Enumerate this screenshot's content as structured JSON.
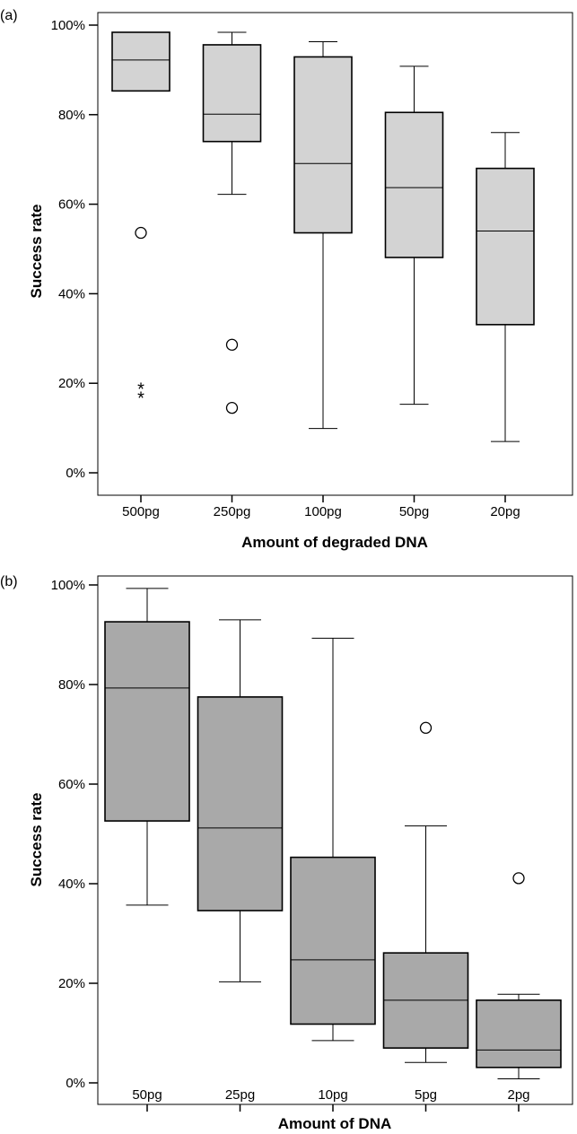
{
  "chart_data": [
    {
      "panel_label": "(a)",
      "type": "box",
      "xlabel": "Amount of degraded DNA",
      "ylabel": "Success rate",
      "ylim": [
        0,
        100
      ],
      "yticks": [
        "0%",
        "20%",
        "40%",
        "60%",
        "80%",
        "100%"
      ],
      "ytick_values": [
        0,
        20,
        40,
        60,
        80,
        100
      ],
      "box_fill": "#d3d3d3",
      "categories": [
        "500pg",
        "250pg",
        "100pg",
        "50pg",
        "20pg"
      ],
      "boxes": [
        {
          "category": "500pg",
          "whisker_low": 85.3,
          "q1": 85.3,
          "median": 92.2,
          "q3": 98.4,
          "whisker_high": 98.4,
          "outliers": [
            53.6
          ],
          "extremes": [
            19.1,
            17.1
          ]
        },
        {
          "category": "250pg",
          "whisker_low": 62.2,
          "q1": 74.0,
          "median": 80.1,
          "q3": 95.6,
          "whisker_high": 98.4,
          "outliers": [
            28.6,
            14.5
          ],
          "extremes": []
        },
        {
          "category": "100pg",
          "whisker_low": 9.9,
          "q1": 53.6,
          "median": 69.1,
          "q3": 92.9,
          "whisker_high": 96.3,
          "outliers": [],
          "extremes": []
        },
        {
          "category": "50pg",
          "whisker_low": 15.3,
          "q1": 48.1,
          "median": 63.7,
          "q3": 80.5,
          "whisker_high": 90.8,
          "outliers": [],
          "extremes": []
        },
        {
          "category": "20pg",
          "whisker_low": 7.0,
          "q1": 33.1,
          "median": 54.0,
          "q3": 68.0,
          "whisker_high": 76.0,
          "outliers": [],
          "extremes": []
        }
      ]
    },
    {
      "panel_label": "(b)",
      "type": "box",
      "xlabel": "Amount of DNA",
      "ylabel": "Success rate",
      "ylim": [
        0,
        100
      ],
      "yticks": [
        "0%",
        "20%",
        "40%",
        "60%",
        "80%",
        "100%"
      ],
      "ytick_values": [
        0,
        20,
        40,
        60,
        80,
        100
      ],
      "box_fill": "#a9a9a9",
      "categories": [
        "50pg",
        "25pg",
        "10pg",
        "5pg",
        "2pg"
      ],
      "boxes": [
        {
          "category": "50pg",
          "whisker_low": 35.7,
          "q1": 52.6,
          "median": 79.3,
          "q3": 92.6,
          "whisker_high": 99.3,
          "outliers": [],
          "extremes": []
        },
        {
          "category": "25pg",
          "whisker_low": 20.3,
          "q1": 34.6,
          "median": 51.2,
          "q3": 77.5,
          "whisker_high": 93.0,
          "outliers": [],
          "extremes": []
        },
        {
          "category": "10pg",
          "whisker_low": 8.5,
          "q1": 11.8,
          "median": 24.7,
          "q3": 45.3,
          "whisker_high": 89.3,
          "outliers": [],
          "extremes": []
        },
        {
          "category": "5pg",
          "whisker_low": 4.1,
          "q1": 7.0,
          "median": 16.6,
          "q3": 26.1,
          "whisker_high": 51.6,
          "outliers": [
            71.3
          ],
          "extremes": []
        },
        {
          "category": "2pg",
          "whisker_low": 0.8,
          "q1": 3.1,
          "median": 6.6,
          "q3": 16.6,
          "whisker_high": 17.8,
          "outliers": [
            41.1
          ],
          "extremes": []
        }
      ]
    }
  ]
}
